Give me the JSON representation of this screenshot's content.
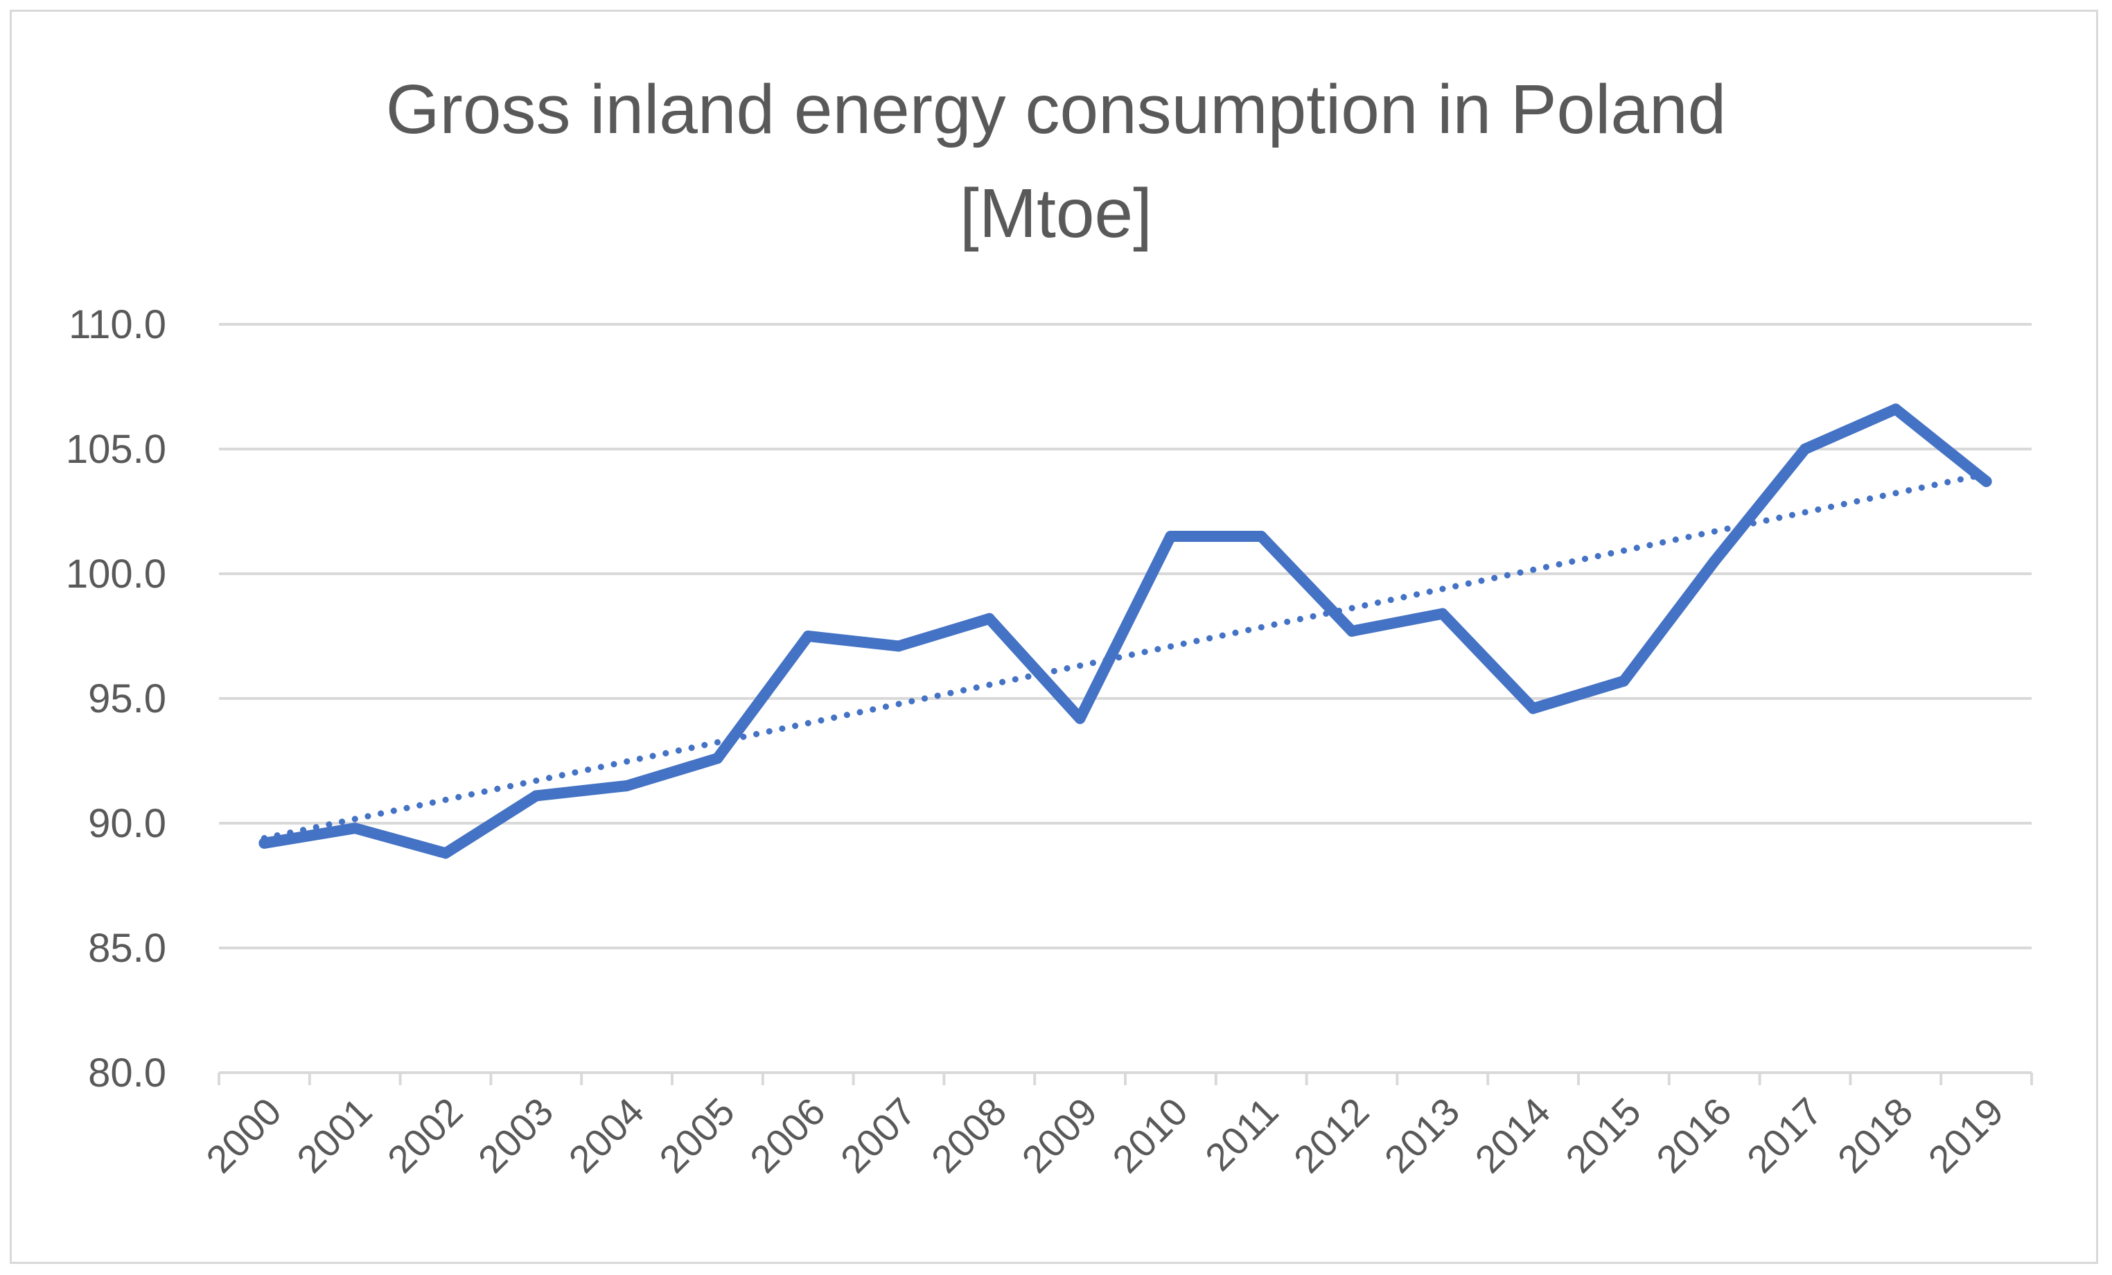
{
  "chart_data": {
    "type": "line",
    "title_lines": [
      "Gross inland energy consumption in Poland",
      "[Mtoe]"
    ],
    "xlabel": "",
    "ylabel": "",
    "categories": [
      "2000",
      "2001",
      "2002",
      "2003",
      "2004",
      "2005",
      "2006",
      "2007",
      "2008",
      "2009",
      "2010",
      "2011",
      "2012",
      "2013",
      "2014",
      "2015",
      "2016",
      "2017",
      "2018",
      "2019"
    ],
    "series": [
      {
        "name": "Gross inland energy consumption",
        "values": [
          89.2,
          89.8,
          88.8,
          91.1,
          91.5,
          92.6,
          97.5,
          97.1,
          98.2,
          94.2,
          101.5,
          101.5,
          97.7,
          98.4,
          94.6,
          95.7,
          100.5,
          105.0,
          106.6,
          103.7
        ],
        "color": "#4472c4"
      }
    ],
    "trendline": {
      "type": "linear",
      "style": "dotted",
      "start": 89.4,
      "end": 104.0,
      "color": "#4472c4"
    },
    "ylim": [
      80.0,
      110.0
    ],
    "y_ticks": [
      "80.0",
      "85.0",
      "90.0",
      "95.0",
      "100.0",
      "105.0",
      "110.0"
    ],
    "grid": true,
    "legend": "none"
  }
}
